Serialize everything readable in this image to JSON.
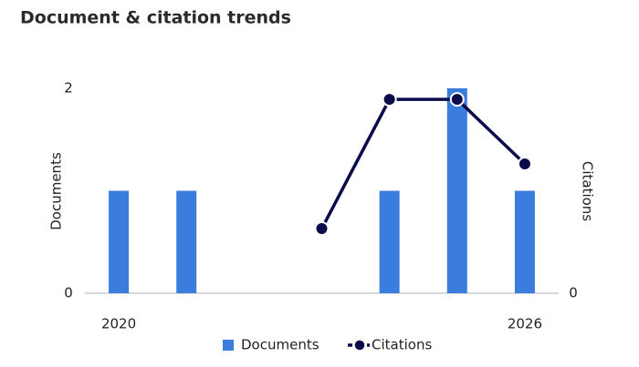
{
  "chart_data": {
    "type": "bar-line",
    "title": "Document & citation trends",
    "x": [
      2020,
      2021,
      2022,
      2023,
      2024,
      2025,
      2026
    ],
    "xlim": [
      2019.5,
      2026.5
    ],
    "xticks": [
      2020,
      2026
    ],
    "ylabel": "Documents",
    "y2label": "Citations",
    "ylim": [
      0,
      2
    ],
    "yticks": [
      0,
      2
    ],
    "y2lim": [
      0,
      3.17
    ],
    "y2ticks": [
      0
    ],
    "series": [
      {
        "name": "Documents",
        "type": "bar",
        "color": "#3b7ddd",
        "values": [
          1,
          1,
          0,
          0,
          1,
          2,
          1
        ]
      },
      {
        "name": "Citations",
        "type": "line",
        "axis": "y2",
        "color": "#0b0b4b",
        "values": [
          null,
          null,
          null,
          1,
          3,
          3,
          2
        ]
      }
    ]
  }
}
